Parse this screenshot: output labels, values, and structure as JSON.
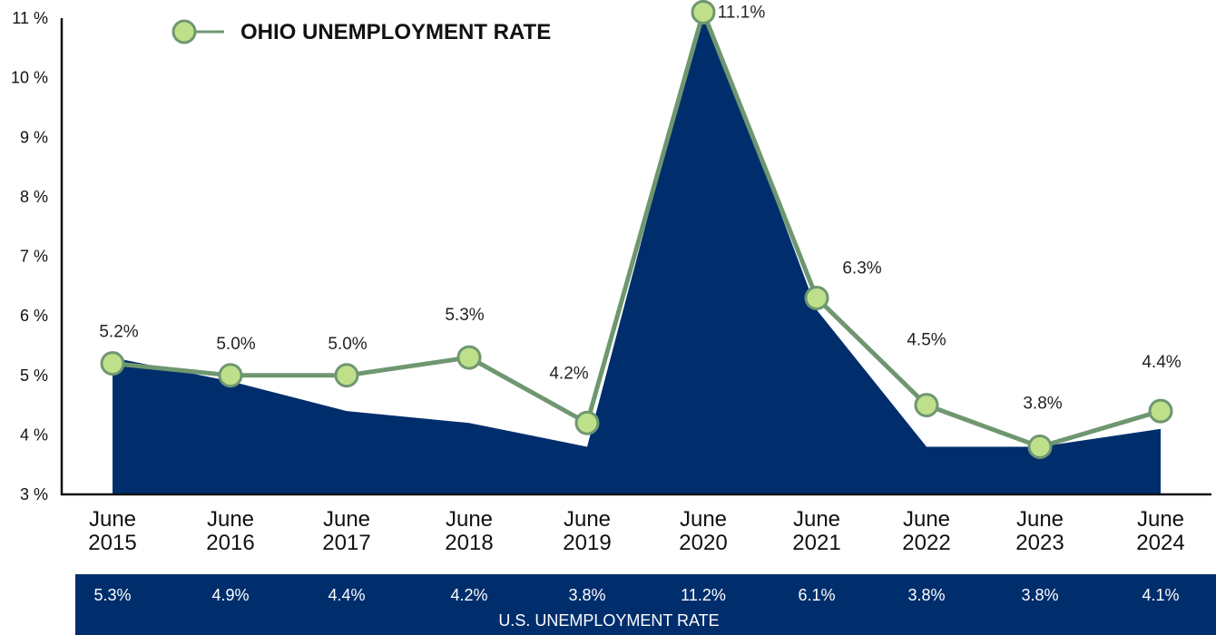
{
  "colors": {
    "us_area": "#002e6d",
    "ohio_line": "#6e9770",
    "ohio_marker": "#bfe08a",
    "band_text": "#ffffff"
  },
  "us_band_label": "U.S. UNEMPLOYMENT RATE",
  "chart_data": {
    "type": "area",
    "legend_label": "OHIO UNEMPLOYMENT RATE",
    "y_ticks": [
      "3 %",
      "4 %",
      "5 %",
      "6 %",
      "7 %",
      "8 %",
      "9 %",
      "10 %",
      "11 %"
    ],
    "ylim": [
      3,
      11
    ],
    "categories": [
      [
        "June",
        "2015"
      ],
      [
        "June",
        "2016"
      ],
      [
        "June",
        "2017"
      ],
      [
        "June",
        "2018"
      ],
      [
        "June",
        "2019"
      ],
      [
        "June",
        "2020"
      ],
      [
        "June",
        "2021"
      ],
      [
        "June",
        "2022"
      ],
      [
        "June",
        "2023"
      ],
      [
        "June",
        "2024"
      ]
    ],
    "series": [
      {
        "name": "OHIO UNEMPLOYMENT RATE",
        "values": [
          5.2,
          5.0,
          5.0,
          5.3,
          4.2,
          11.1,
          6.3,
          4.5,
          3.8,
          4.4
        ],
        "labels": [
          "5.2%",
          "5.0%",
          "5.0%",
          "5.3%",
          "4.2%",
          "11.1%",
          "6.3%",
          "4.5%",
          "3.8%",
          "4.4%"
        ]
      },
      {
        "name": "U.S. UNEMPLOYMENT RATE",
        "values": [
          5.3,
          4.9,
          4.4,
          4.2,
          3.8,
          11.2,
          6.1,
          3.8,
          3.8,
          4.1
        ],
        "labels": [
          "5.3%",
          "4.9%",
          "4.4%",
          "4.2%",
          "3.8%",
          "11.2%",
          "6.1%",
          "3.8%",
          "3.8%",
          "4.1%"
        ]
      }
    ]
  }
}
